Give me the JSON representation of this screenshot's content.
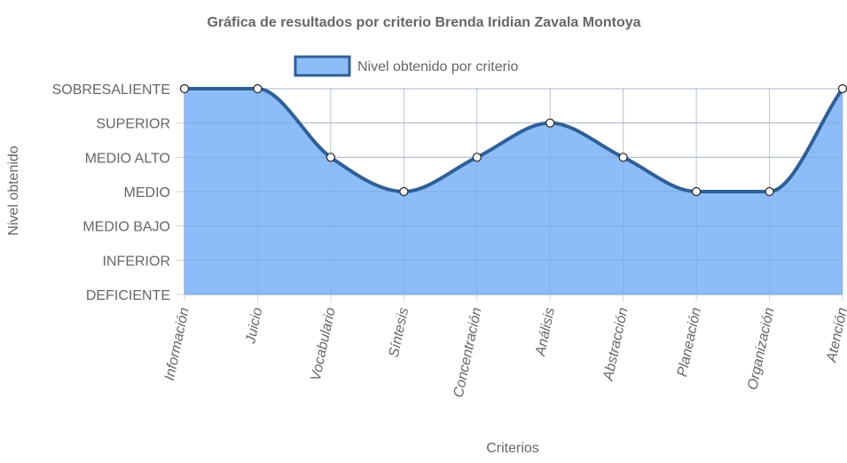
{
  "chart_data": {
    "type": "area",
    "title": "Gráfica de resultados por criterio Brenda Iridian Zavala Montoya",
    "xlabel": "Criterios",
    "ylabel": "Nivel obtenido",
    "y_levels": [
      "DEFICIENTE",
      "INFERIOR",
      "MEDIO BAJO",
      "MEDIO",
      "MEDIO ALTO",
      "SUPERIOR",
      "SOBRESALIENTE"
    ],
    "categories": [
      "Información",
      "Juicio",
      "Vocabulario",
      "Síntesis",
      "Concentración",
      "Análisis",
      "Abstracción",
      "Planeación",
      "Organización",
      "Atención"
    ],
    "series": [
      {
        "name": "Nivel obtenido por criterio",
        "values": [
          "SOBRESALIENTE",
          "SOBRESALIENTE",
          "MEDIO ALTO",
          "MEDIO",
          "MEDIO ALTO",
          "SUPERIOR",
          "MEDIO ALTO",
          "MEDIO",
          "MEDIO",
          "SOBRESALIENTE"
        ]
      }
    ],
    "legend_position": "top",
    "grid": true,
    "colors": {
      "fill": "#8dbcf8",
      "line": "#2f5f97",
      "grid": "#d6d6d6",
      "point_fill": "#ffffff"
    }
  }
}
